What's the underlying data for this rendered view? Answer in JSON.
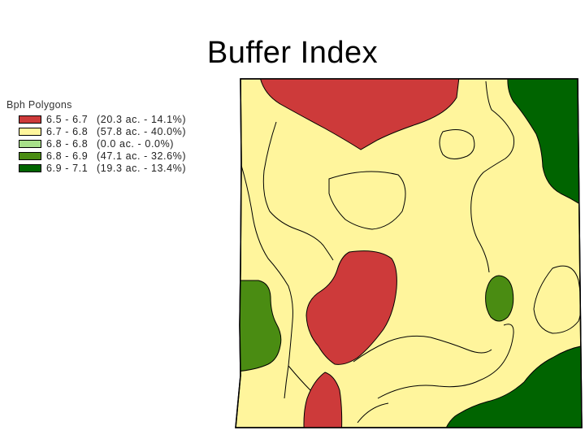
{
  "title": "Buffer Index",
  "legend": {
    "header": "Bph Polygons",
    "items": [
      {
        "range": "6.5 - 6.7",
        "stat": "(20.3 ac. - 14.1%)",
        "color": "#cd3a3a"
      },
      {
        "range": "6.7 - 6.8",
        "stat": "(57.8 ac. - 40.0%)",
        "color": "#fff59c"
      },
      {
        "range": "6.8 - 6.8",
        "stat": "(0.0 ac. - 0.0%)",
        "color": "#a8e08a"
      },
      {
        "range": "6.8 - 6.9",
        "stat": "(47.1 ac. - 32.6%)",
        "color": "#4a8c12"
      },
      {
        "range": "6.9 - 7.1",
        "stat": "(19.3 ac. - 13.4%)",
        "color": "#006400"
      }
    ]
  }
}
